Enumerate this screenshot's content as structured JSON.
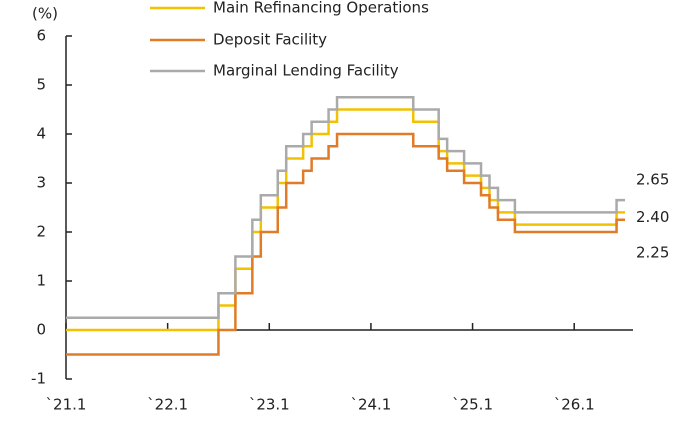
{
  "chart_data": {
    "type": "step",
    "y_label": "(%)",
    "categories": [
      "`21.1",
      null,
      null,
      null,
      null,
      null,
      null,
      null,
      null,
      null,
      null,
      null,
      "`22.1",
      null,
      null,
      null,
      null,
      null,
      null,
      null,
      null,
      null,
      null,
      null,
      "`23.1",
      null,
      null,
      null,
      null,
      null,
      null,
      null,
      null,
      null,
      null,
      null,
      "`24.1",
      null,
      null,
      null,
      null,
      null,
      null,
      null,
      null,
      null,
      null,
      null,
      "`25.1",
      null,
      null,
      null,
      null,
      null,
      null,
      null,
      null,
      null,
      null,
      null,
      "`26.1",
      null,
      null,
      null,
      null,
      null,
      null
    ],
    "ylim": [
      -1,
      6
    ],
    "yticks": [
      -1,
      0,
      1,
      2,
      3,
      4,
      5,
      6
    ],
    "series": [
      {
        "name": "Main Refinancing Operations",
        "color": "#f2c200",
        "values": [
          0,
          0,
          0,
          0,
          0,
          0,
          0,
          0,
          0,
          0,
          0,
          0,
          0,
          0,
          0,
          0,
          0,
          0,
          0.5,
          0.5,
          1.25,
          1.25,
          2.0,
          2.5,
          2.5,
          3.0,
          3.5,
          3.5,
          3.75,
          4.0,
          4.0,
          4.25,
          4.5,
          4.5,
          4.5,
          4.5,
          4.5,
          4.5,
          4.5,
          4.5,
          4.5,
          4.25,
          4.25,
          4.25,
          3.65,
          3.4,
          3.4,
          3.15,
          3.15,
          2.9,
          2.65,
          2.4,
          2.4,
          2.15,
          2.15,
          2.15,
          2.15,
          2.15,
          2.15,
          2.15,
          2.15,
          2.15,
          2.15,
          2.15,
          2.15,
          2.4,
          2.4
        ],
        "value_labels": [
          null,
          null,
          null,
          null,
          null,
          null,
          null,
          null,
          null,
          null,
          null,
          null,
          null,
          null,
          null,
          null,
          null,
          null,
          null,
          null,
          null,
          null,
          null,
          null,
          null,
          null,
          null,
          null,
          null,
          null,
          null,
          null,
          null,
          null,
          null,
          null,
          null,
          null,
          null,
          null,
          null,
          null,
          null,
          null,
          null,
          null,
          null,
          null,
          null,
          null,
          null,
          null,
          null,
          null,
          null,
          null,
          null,
          null,
          null,
          null,
          null,
          null,
          null,
          null,
          null,
          null,
          "2.40"
        ]
      },
      {
        "name": "Deposit Facility",
        "color": "#e07b28",
        "values": [
          -0.5,
          -0.5,
          -0.5,
          -0.5,
          -0.5,
          -0.5,
          -0.5,
          -0.5,
          -0.5,
          -0.5,
          -0.5,
          -0.5,
          -0.5,
          -0.5,
          -0.5,
          -0.5,
          -0.5,
          -0.5,
          0,
          0,
          0.75,
          0.75,
          1.5,
          2.0,
          2.0,
          2.5,
          3.0,
          3.0,
          3.25,
          3.5,
          3.5,
          3.75,
          4.0,
          4.0,
          4.0,
          4.0,
          4.0,
          4.0,
          4.0,
          4.0,
          4.0,
          3.75,
          3.75,
          3.75,
          3.5,
          3.25,
          3.25,
          3.0,
          3.0,
          2.75,
          2.5,
          2.25,
          2.25,
          2.0,
          2.0,
          2.0,
          2.0,
          2.0,
          2.0,
          2.0,
          2.0,
          2.0,
          2.0,
          2.0,
          2.0,
          2.25,
          2.25
        ],
        "value_labels": [
          null,
          null,
          null,
          null,
          null,
          null,
          null,
          null,
          null,
          null,
          null,
          null,
          null,
          null,
          null,
          null,
          null,
          null,
          null,
          null,
          null,
          null,
          null,
          null,
          null,
          null,
          null,
          null,
          null,
          null,
          null,
          null,
          null,
          null,
          null,
          null,
          null,
          null,
          null,
          null,
          null,
          null,
          null,
          null,
          null,
          null,
          null,
          null,
          null,
          null,
          null,
          null,
          null,
          null,
          null,
          null,
          null,
          null,
          null,
          null,
          null,
          null,
          null,
          null,
          null,
          null,
          "2.25"
        ]
      },
      {
        "name": "Marginal Lending Facility",
        "color": "#aaaaaa",
        "values": [
          0.25,
          0.25,
          0.25,
          0.25,
          0.25,
          0.25,
          0.25,
          0.25,
          0.25,
          0.25,
          0.25,
          0.25,
          0.25,
          0.25,
          0.25,
          0.25,
          0.25,
          0.25,
          0.75,
          0.75,
          1.5,
          1.5,
          2.25,
          2.75,
          2.75,
          3.25,
          3.75,
          3.75,
          4.0,
          4.25,
          4.25,
          4.5,
          4.75,
          4.75,
          4.75,
          4.75,
          4.75,
          4.75,
          4.75,
          4.75,
          4.75,
          4.5,
          4.5,
          4.5,
          3.9,
          3.65,
          3.65,
          3.4,
          3.4,
          3.15,
          2.9,
          2.65,
          2.65,
          2.4,
          2.4,
          2.4,
          2.4,
          2.4,
          2.4,
          2.4,
          2.4,
          2.4,
          2.4,
          2.4,
          2.4,
          2.65,
          2.65
        ],
        "value_labels": [
          null,
          null,
          null,
          null,
          null,
          null,
          null,
          null,
          null,
          null,
          null,
          null,
          null,
          null,
          null,
          null,
          null,
          null,
          null,
          null,
          null,
          null,
          null,
          null,
          null,
          null,
          null,
          null,
          null,
          null,
          null,
          null,
          null,
          null,
          null,
          null,
          null,
          null,
          null,
          null,
          null,
          null,
          null,
          null,
          null,
          null,
          null,
          null,
          null,
          null,
          null,
          null,
          null,
          null,
          null,
          null,
          null,
          null,
          null,
          null,
          null,
          null,
          null,
          null,
          null,
          null,
          "2.65"
        ]
      }
    ]
  }
}
